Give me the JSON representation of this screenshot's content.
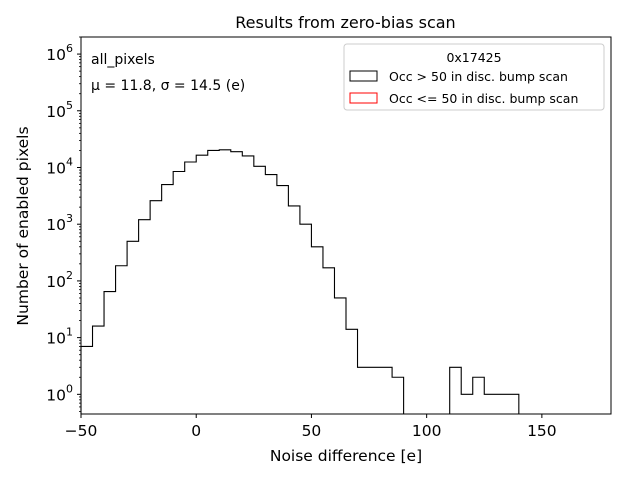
{
  "chart_data": {
    "type": "histogram",
    "title": "Results from zero-bias scan",
    "xlabel": "Noise difference [e]",
    "ylabel": "Number of enabled pixels",
    "xlim": [
      -50,
      180
    ],
    "ylim": [
      0.45,
      2000000
    ],
    "yscale": "log",
    "grid": false,
    "xticks": [
      {
        "value": -50,
        "label": "−50"
      },
      {
        "value": 0,
        "label": "0"
      },
      {
        "value": 50,
        "label": "50"
      },
      {
        "value": 100,
        "label": "100"
      },
      {
        "value": 150,
        "label": "150"
      }
    ],
    "yticks": [
      {
        "value": 1,
        "base": "10",
        "exp": "0"
      },
      {
        "value": 10,
        "base": "10",
        "exp": "1"
      },
      {
        "value": 100,
        "base": "10",
        "exp": "2"
      },
      {
        "value": 1000,
        "base": "10",
        "exp": "3"
      },
      {
        "value": 10000,
        "base": "10",
        "exp": "4"
      },
      {
        "value": 100000,
        "base": "10",
        "exp": "5"
      },
      {
        "value": 1000000,
        "base": "10",
        "exp": "6"
      }
    ],
    "annotations": {
      "group": "all_pixels",
      "stats": "μ = 11.8, σ = 14.5 (e)"
    },
    "legend": {
      "title": "0x17425",
      "placement": "top-right",
      "entries": [
        {
          "label": "Occ > 50 in disc. bump scan",
          "color": "#000000"
        },
        {
          "label": "Occ <= 50 in disc. bump scan",
          "color": "#ff0000"
        }
      ]
    },
    "bin_edges": [
      -50,
      -45,
      -40,
      -35,
      -30,
      -25,
      -20,
      -15,
      -10,
      -5,
      0,
      5,
      10,
      15,
      20,
      25,
      30,
      35,
      40,
      45,
      50,
      55,
      60,
      65,
      70,
      75,
      80,
      85,
      90,
      95,
      100,
      105,
      110,
      115,
      120,
      125,
      130,
      135,
      140
    ],
    "series": [
      {
        "name": "Occ > 50 in disc. bump scan",
        "color": "#000000",
        "counts": [
          7,
          16,
          65,
          185,
          500,
          1200,
          2600,
          5000,
          8500,
          12500,
          16500,
          20000,
          20500,
          19000,
          16000,
          10500,
          7500,
          4800,
          2100,
          1000,
          400,
          170,
          50,
          14,
          3,
          3,
          3,
          2,
          0,
          0,
          0,
          0,
          3,
          1,
          2,
          1,
          1,
          1
        ]
      },
      {
        "name": "Occ <= 50 in disc. bump scan",
        "color": "#ff0000",
        "counts": []
      }
    ]
  }
}
